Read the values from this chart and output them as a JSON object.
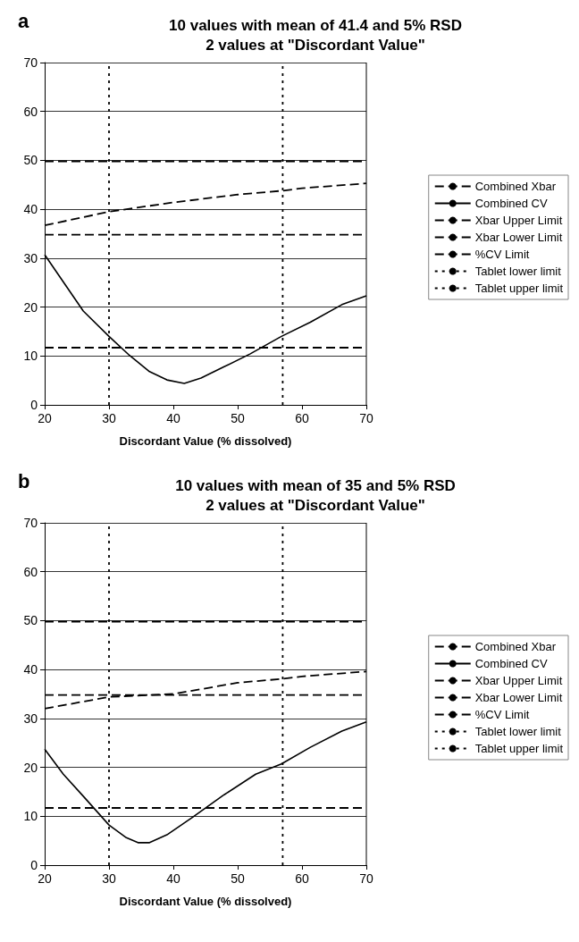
{
  "chart_data": [
    {
      "type": "line",
      "title": "10 values with mean of 41.4 and 5% RSD\n2 values at \"Discordant Value\"",
      "annotations": [
        "a"
      ],
      "xlabel": "Discordant Value (% dissolved)",
      "xlim": [
        20,
        70
      ],
      "xticks": [
        20,
        30,
        40,
        50,
        60,
        70
      ],
      "ylim": [
        0,
        70
      ],
      "yticks": [
        0,
        10,
        20,
        30,
        40,
        50,
        60,
        70
      ],
      "grid": "y",
      "legend": "right",
      "marker": "none",
      "series": [
        {
          "name": "Combined Xbar",
          "color": "#000000",
          "line_style": "dashed",
          "x": [
            20,
            30,
            40,
            50,
            57,
            60,
            70
          ],
          "values": [
            36.7,
            39.5,
            41.4,
            43,
            43.8,
            44.3,
            45.3
          ]
        },
        {
          "name": "Combined CV",
          "color": "#000000",
          "line_style": "solid",
          "x": [
            20,
            26,
            30,
            33.2,
            36.3,
            39,
            41.7,
            44.3,
            47.9,
            51.9,
            56.8,
            61.3,
            66.2,
            70
          ],
          "values": [
            30.7,
            19.2,
            14,
            10.1,
            6.8,
            5.1,
            4.4,
            5.5,
            7.8,
            10.4,
            14,
            16.9,
            20.5,
            22.3
          ]
        },
        {
          "name": "Xbar Upper Limit",
          "color": "#000000",
          "line_style": "dashed",
          "x": [
            20,
            70
          ],
          "values": [
            49.8,
            49.8
          ]
        },
        {
          "name": "Xbar Lower Limit",
          "color": "#000000",
          "line_style": "dashed",
          "x": [
            20,
            70
          ],
          "values": [
            34.8,
            34.8
          ]
        },
        {
          "name": "%CV Limit",
          "color": "#000000",
          "line_style": "dashed",
          "x": [
            20,
            70
          ],
          "values": [
            11.7,
            11.7
          ]
        },
        {
          "name": "Tablet lower limit",
          "color": "#000000",
          "line_style": "dotted",
          "x": [
            30,
            30
          ],
          "values": [
            0,
            70
          ]
        },
        {
          "name": "Tablet upper limit",
          "color": "#000000",
          "line_style": "dotted",
          "x": [
            57,
            57
          ],
          "values": [
            0,
            70
          ]
        }
      ]
    },
    {
      "type": "line",
      "title": "10 values with mean of 35 and 5% RSD\n2 values at \"Discordant Value\"",
      "annotations": [
        "b"
      ],
      "xlabel": "Discordant Value (% dissolved)",
      "xlim": [
        20,
        70
      ],
      "xticks": [
        20,
        30,
        40,
        50,
        60,
        70
      ],
      "ylim": [
        0,
        70
      ],
      "yticks": [
        0,
        10,
        20,
        30,
        40,
        50,
        60,
        70
      ],
      "grid": "y",
      "legend": "right",
      "marker": "none",
      "series": [
        {
          "name": "Combined Xbar",
          "color": "#000000",
          "line_style": "dashed",
          "x": [
            20,
            30,
            40,
            50,
            57,
            60,
            70
          ],
          "values": [
            32,
            34.4,
            35,
            37.3,
            38.1,
            38.6,
            39.6
          ]
        },
        {
          "name": "Combined CV",
          "color": "#000000",
          "line_style": "solid",
          "x": [
            20,
            22.9,
            26,
            30,
            32.7,
            34.5,
            36.3,
            39,
            43,
            47.9,
            52.8,
            56.8,
            61.3,
            66.2,
            70
          ],
          "values": [
            23.7,
            18.6,
            14.1,
            8.2,
            5.6,
            4.6,
            4.6,
            6.2,
            9.8,
            14.4,
            18.6,
            20.7,
            24.1,
            27.4,
            29.3
          ]
        },
        {
          "name": "Xbar Upper Limit",
          "color": "#000000",
          "line_style": "dashed",
          "x": [
            20,
            70
          ],
          "values": [
            49.8,
            49.8
          ]
        },
        {
          "name": "Xbar Lower Limit",
          "color": "#000000",
          "line_style": "dashed",
          "x": [
            20,
            70
          ],
          "values": [
            34.8,
            34.8
          ]
        },
        {
          "name": "%CV Limit",
          "color": "#000000",
          "line_style": "dashed",
          "x": [
            20,
            70
          ],
          "values": [
            11.7,
            11.7
          ]
        },
        {
          "name": "Tablet lower limit",
          "color": "#000000",
          "line_style": "dotted",
          "x": [
            30,
            30
          ],
          "values": [
            0,
            70
          ]
        },
        {
          "name": "Tablet upper limit",
          "color": "#000000",
          "line_style": "dotted",
          "x": [
            57,
            57
          ],
          "values": [
            0,
            70
          ]
        }
      ]
    }
  ]
}
